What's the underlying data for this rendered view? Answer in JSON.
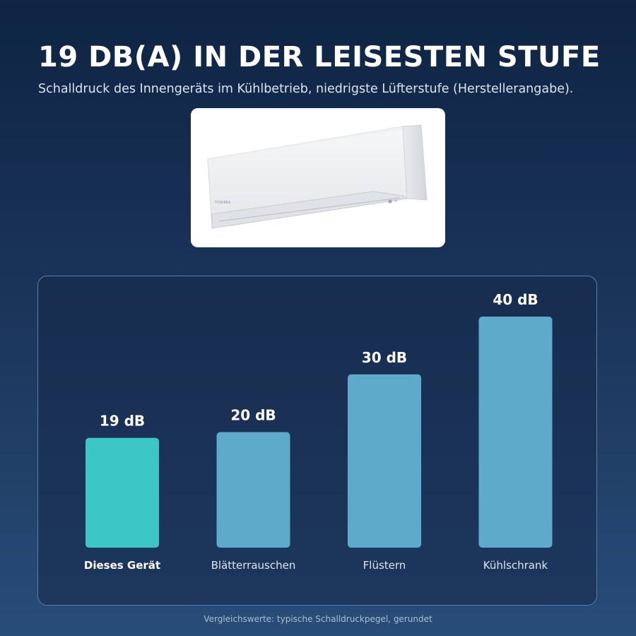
{
  "header": {
    "title": "19 DB(A) IN DER LEISESTEN STUFE",
    "subtitle": "Schalldruck des Innengeräts im Kühlbetrieb, niedrigste Lüfterstufe (Herstellerangabe)."
  },
  "product_image": {
    "icon": "air-conditioner-indoor-unit",
    "brand_mark": "TOSHIBA"
  },
  "chart_data": {
    "type": "bar",
    "categories": [
      "Dieses Gerät",
      "Blätterrauschen",
      "Flüstern",
      "Kühlschrank"
    ],
    "values": [
      19,
      20,
      30,
      40
    ],
    "value_labels": [
      "19 dB",
      "20 dB",
      "30 dB",
      "40 dB"
    ],
    "highlight_index": 0,
    "ylim": [
      0,
      40
    ],
    "grid": false,
    "legend": "none",
    "colors": {
      "highlight": "#3cc7c5",
      "default": "#5eaaca"
    }
  },
  "footnote": "Vergleichswerte: typische Schalldruckpegel, gerundet"
}
